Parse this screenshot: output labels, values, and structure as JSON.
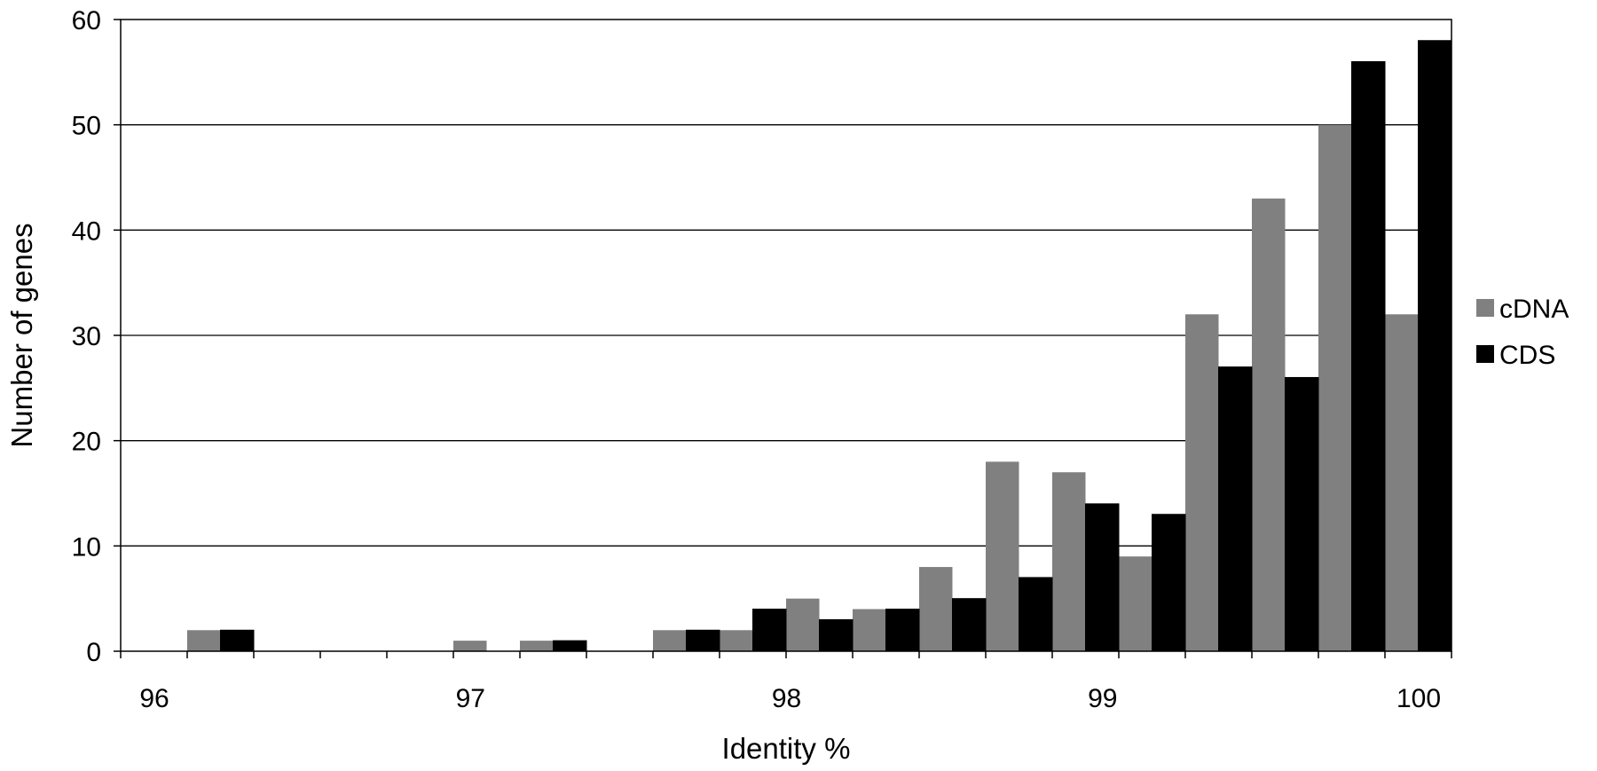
{
  "chart_data": {
    "type": "bar",
    "title": "",
    "xlabel": "Identity %",
    "ylabel": "Number of genes",
    "ylim": [
      0,
      60
    ],
    "y_ticks": [
      "0",
      "10",
      "20",
      "30",
      "40",
      "50",
      "60"
    ],
    "x_tick_labels": [
      "96",
      "97",
      "98",
      "99",
      "100"
    ],
    "x_range": [
      96,
      100
    ],
    "grid": "horizontal",
    "legend_position": "right",
    "categories": [
      "96.2",
      "96.4",
      "96.6",
      "96.8",
      "97.0",
      "97.2",
      "97.4",
      "97.6",
      "97.8",
      "98.0",
      "98.2",
      "98.4",
      "98.6",
      "98.8",
      "99.0",
      "99.2",
      "99.4",
      "99.6",
      "99.8",
      "100.0"
    ],
    "series": [
      {
        "name": "cDNA",
        "color": "#808080",
        "values": [
          0,
          2,
          0,
          0,
          0,
          1,
          1,
          0,
          2,
          2,
          5,
          4,
          8,
          18,
          17,
          9,
          32,
          43,
          50,
          32
        ]
      },
      {
        "name": "CDS",
        "color": "#000000",
        "values": [
          0,
          2,
          0,
          0,
          0,
          0,
          1,
          0,
          2,
          4,
          3,
          4,
          5,
          7,
          14,
          13,
          27,
          26,
          56,
          58
        ]
      }
    ]
  }
}
